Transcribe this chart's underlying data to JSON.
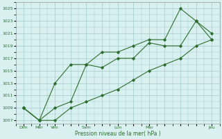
{
  "title": "",
  "xlabel": "Pression niveau de la mer( hPa )",
  "ylabel": "",
  "bg_color": "#d8f0f0",
  "grid_color": "#a0c8c8",
  "line_color": "#2d6e2d",
  "ylim": [
    1006.5,
    1026
  ],
  "yticks": [
    1007,
    1009,
    1011,
    1013,
    1015,
    1017,
    1019,
    1021,
    1023,
    1025
  ],
  "xtick_labels": [
    "Dim",
    "Mer",
    "Ven",
    "",
    "Sam",
    "",
    "Lun",
    "",
    "Mar",
    "",
    "",
    "",
    "Jeu"
  ],
  "series1": [
    1009,
    1007,
    1007,
    1009,
    1010,
    1011,
    1012,
    1013.5,
    1015,
    1016,
    1017,
    1019,
    1020
  ],
  "series2": [
    1009,
    1007,
    1009,
    1010,
    1016,
    1015.5,
    1017,
    1017,
    1019.5,
    1019,
    1019,
    1023,
    1020
  ],
  "series3": [
    1009,
    1007,
    1013,
    1016,
    1016,
    1018,
    1018,
    1019,
    1020,
    1020,
    1025,
    1023,
    1021
  ]
}
